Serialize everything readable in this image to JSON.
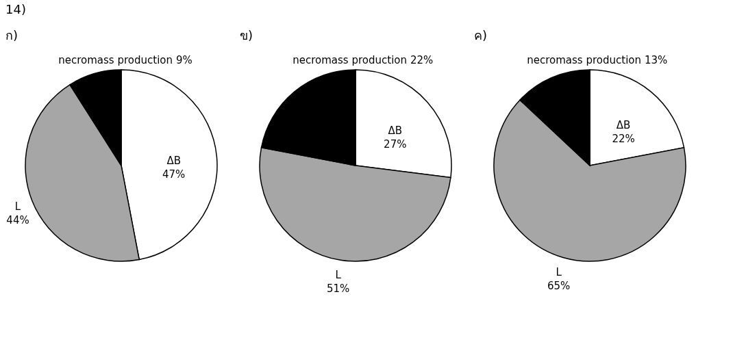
{
  "chart_data": [
    {
      "type": "pie",
      "title": "ก)",
      "annotations": [
        "14)"
      ],
      "categories": [
        "ΔB",
        "L",
        "necromass production"
      ],
      "values": [
        47,
        44,
        9
      ],
      "value_labels": [
        "47%",
        "44%",
        "9%"
      ],
      "colors": [
        "#ffffff",
        "#a6a6a6",
        "#000000"
      ],
      "legend": false
    },
    {
      "type": "pie",
      "title": "ข)",
      "categories": [
        "ΔB",
        "L",
        "necromass production"
      ],
      "values": [
        27,
        51,
        22
      ],
      "value_labels": [
        "27%",
        "51%",
        "22%"
      ],
      "colors": [
        "#ffffff",
        "#a6a6a6",
        "#000000"
      ],
      "legend": false
    },
    {
      "type": "pie",
      "title": "ค)",
      "categories": [
        "ΔB",
        "L",
        "necromass production"
      ],
      "values": [
        22,
        65,
        13
      ],
      "value_labels": [
        "22%",
        "65%",
        "13%"
      ],
      "colors": [
        "#ffffff",
        "#a6a6a6",
        "#000000"
      ],
      "legend": false
    }
  ]
}
